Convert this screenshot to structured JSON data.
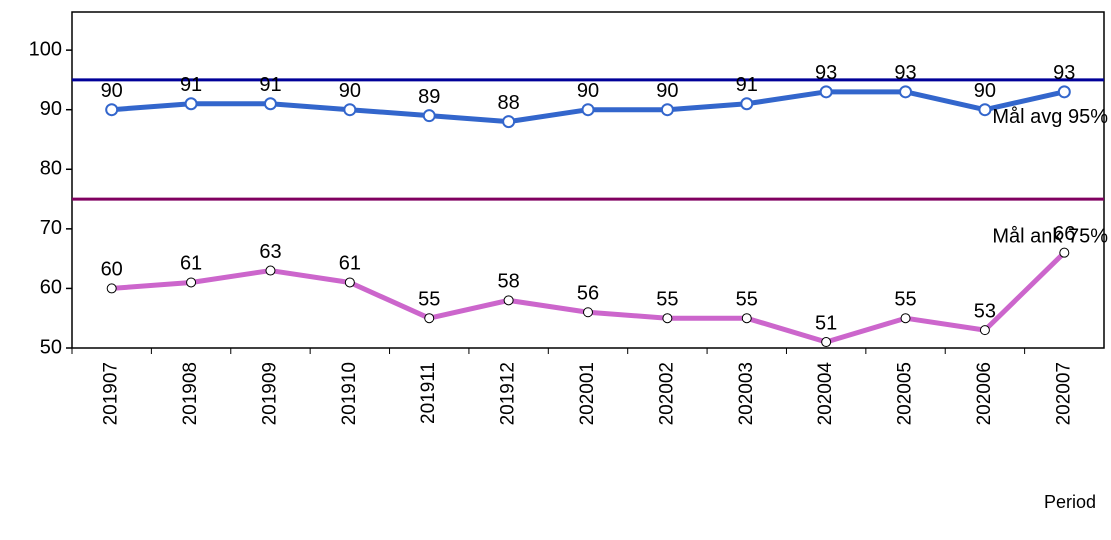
{
  "chart_data": {
    "type": "line",
    "categories": [
      "201907",
      "201908",
      "201909",
      "201910",
      "201911",
      "201912",
      "202001",
      "202002",
      "202003",
      "202004",
      "202005",
      "202006",
      "202007"
    ],
    "series": [
      {
        "color": "#3366cc",
        "marker_color": "#3366cc",
        "values": [
          90,
          91,
          91,
          90,
          89,
          88,
          90,
          90,
          91,
          93,
          93,
          90,
          93
        ]
      },
      {
        "color": "#cc66cc",
        "marker_color": "#000000",
        "values": [
          60,
          61,
          63,
          61,
          55,
          58,
          56,
          55,
          55,
          51,
          55,
          53,
          66
        ]
      }
    ],
    "reference_lines": [
      {
        "value": 95,
        "label": "Mål avg 95%",
        "color": "#000099"
      },
      {
        "value": 75,
        "label": "Mål ank 75%",
        "color": "#800060"
      }
    ],
    "ylim": [
      50,
      106.4
    ],
    "yticks": [
      50,
      60,
      70,
      80,
      90,
      100
    ],
    "xlabel": "Period"
  }
}
